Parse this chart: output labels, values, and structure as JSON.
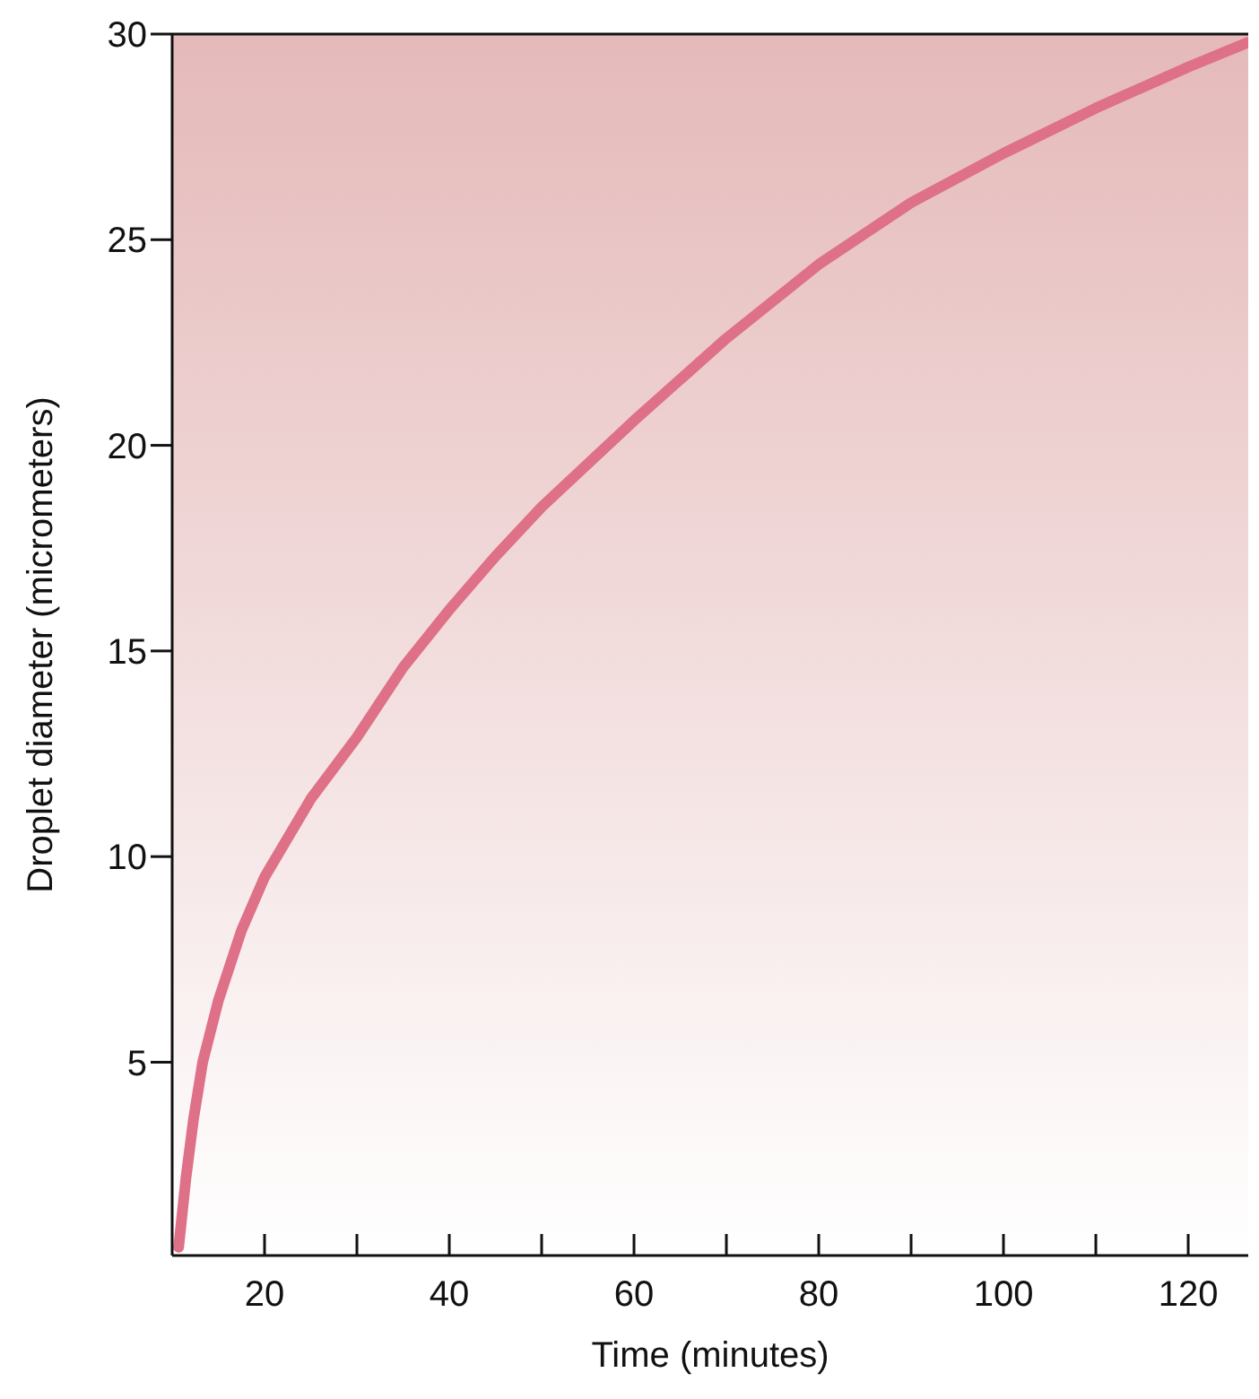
{
  "chart_data": {
    "type": "line",
    "xlabel": "Time (minutes)",
    "ylabel": "Droplet diameter (micrometers)",
    "xlim": [
      10,
      126.5
    ],
    "ylim": [
      0.3,
      30
    ],
    "xticks": [
      20,
      {
        "value": 30,
        "label": null
      },
      40,
      {
        "value": 50,
        "label": null
      },
      60,
      {
        "value": 70,
        "label": null
      },
      80,
      {
        "value": 90,
        "label": null
      },
      100,
      {
        "value": 110,
        "label": null
      },
      120
    ],
    "yticks": [
      5,
      10,
      15,
      20,
      25,
      30
    ],
    "grid": false,
    "legend": false,
    "marker": "none",
    "line_style": "solid",
    "series": [
      {
        "color": "#de7088",
        "x": [
          10.7,
          11.5,
          12.3,
          13.3,
          15,
          17.5,
          20,
          25,
          30,
          35,
          40,
          45,
          50,
          60,
          70,
          80,
          90,
          100,
          110,
          120,
          126.5
        ],
        "values": [
          0.5,
          2.2,
          3.6,
          5,
          6.5,
          8.2,
          9.5,
          11.4,
          12.9,
          14.6,
          16.0,
          17.3,
          18.5,
          20.6,
          22.6,
          24.4,
          25.9,
          27.1,
          28.2,
          29.2,
          29.8
        ]
      }
    ]
  }
}
